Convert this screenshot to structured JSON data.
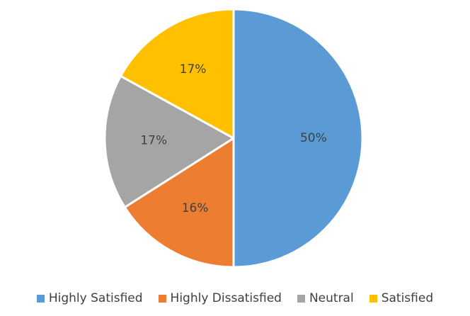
{
  "chart_data": {
    "type": "pie",
    "title": "",
    "categories": [
      "Highly Satisfied",
      "Highly Dissatisfied",
      "Neutral",
      "Satisfied"
    ],
    "values": [
      50,
      16,
      17,
      17
    ],
    "data_labels": [
      "50%",
      "16%",
      "17%",
      "17%"
    ],
    "colors": [
      "#5B9BD5",
      "#ED7D31",
      "#A5A5A5",
      "#FFC000"
    ],
    "legend_position": "bottom"
  }
}
